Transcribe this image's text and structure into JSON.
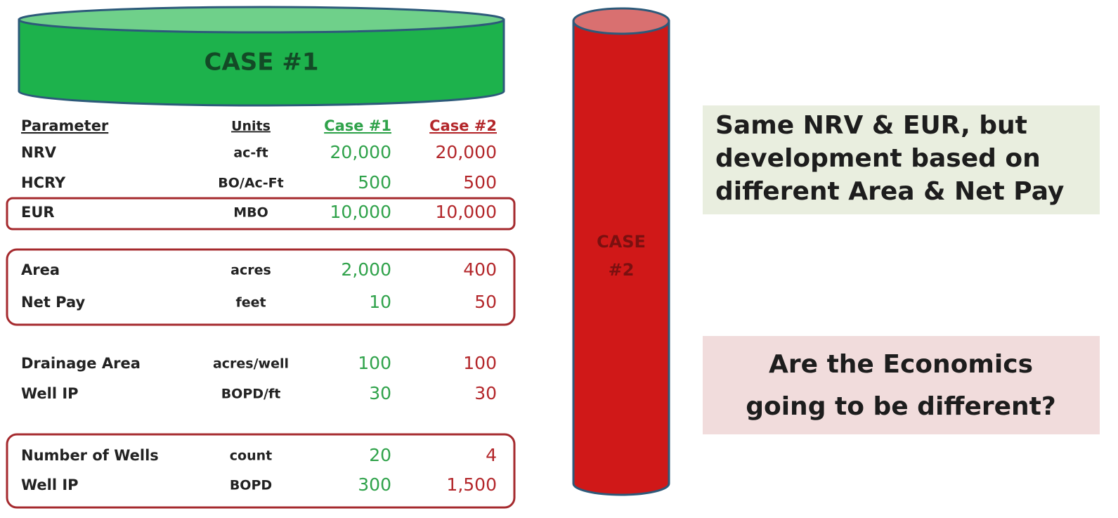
{
  "case1_cylinder": {
    "label": "CASE #1"
  },
  "case2_cylinder": {
    "lines": [
      "CASE",
      "#2"
    ]
  },
  "table": {
    "header": [
      "Parameter",
      "Units",
      "Case #1",
      "Case #2"
    ],
    "rows": [
      [
        "NRV",
        "ac-ft",
        "20,000",
        "20,000"
      ],
      [
        "HCRY",
        "BO/Ac-Ft",
        "500",
        "500"
      ],
      [
        "EUR",
        "MBO",
        "10,000",
        "10,000"
      ],
      [
        "Area",
        "acres",
        "2,000",
        "400"
      ],
      [
        "Net Pay",
        "feet",
        "10",
        "50"
      ],
      [
        "Drainage Area",
        "acres/well",
        "100",
        "100"
      ],
      [
        "Well IP",
        "BOPD/ft",
        "30",
        "30"
      ],
      [
        "Number of Wells",
        "count",
        "20",
        "4"
      ],
      [
        "Well IP",
        "BOPD",
        "300",
        "1,500"
      ]
    ]
  },
  "callouts": [
    {
      "lines": [
        "Same NRV & EUR, but",
        "development based on",
        "different Area & Net Pay"
      ]
    },
    {
      "lines": [
        "Are the Economics",
        "going to be different?"
      ]
    }
  ]
}
